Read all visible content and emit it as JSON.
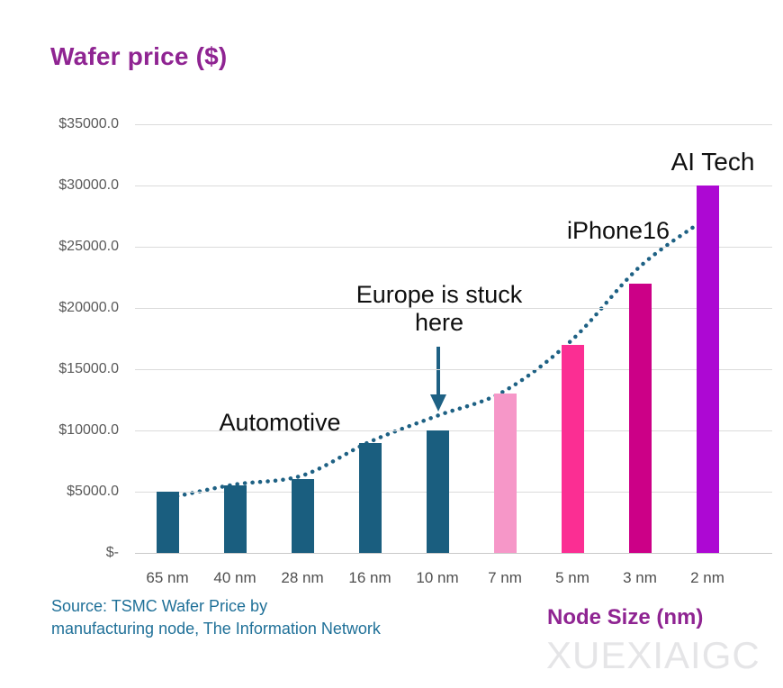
{
  "title": "Wafer price ($)",
  "x_axis_title": "Node Size (nm)",
  "source": {
    "line1": "Source: TSMC Wafer Price by",
    "line2": "manufacturing node, The Information Network"
  },
  "watermark": "XUEXIAIGC",
  "annotations": {
    "automotive": "Automotive",
    "europe": "Europe is stuck here",
    "iphone": "iPhone16",
    "ai_tech": "AI Tech"
  },
  "chart_data": {
    "type": "bar",
    "title": "Wafer price ($)",
    "xlabel": "Node Size (nm)",
    "ylabel": "Wafer price ($)",
    "categories": [
      "65 nm",
      "40 nm",
      "28 nm",
      "16 nm",
      "10 nm",
      "7 nm",
      "5 nm",
      "3 nm",
      "2 nm"
    ],
    "values": [
      5000,
      5500,
      6000,
      9000,
      10000,
      13000,
      17000,
      22000,
      30000
    ],
    "bar_colors": [
      "#1A5E7F",
      "#1A5E7F",
      "#1A5E7F",
      "#1A5E7F",
      "#1A5E7F",
      "#F697C8",
      "#FB2E93",
      "#CC0087",
      "#AD08D3"
    ],
    "ylim": [
      0,
      35000
    ],
    "ytick_step": 5000,
    "ytick_labels": [
      "$-",
      "$5000.0",
      "$10000.0",
      "$15000.0",
      "$20000.0",
      "$25000.0",
      "$30000.0",
      "$35000.0"
    ],
    "grid": true,
    "legend": "none",
    "trendline": {
      "style": "dotted",
      "color": "#1E6184",
      "description": "exponential trend curve passing near bar tops from 65 nm to 2 nm"
    },
    "annotations": [
      {
        "text": "Automotive",
        "refers_to": "65-10 nm teal bars"
      },
      {
        "text": "Europe is stuck here",
        "arrow_to": "10 nm",
        "value_at_target": 10000
      },
      {
        "text": "iPhone16",
        "refers_to": "3 nm",
        "value_at_target": 22000
      },
      {
        "text": "AI Tech",
        "refers_to": "2 nm",
        "value_at_target": 30000
      }
    ]
  }
}
